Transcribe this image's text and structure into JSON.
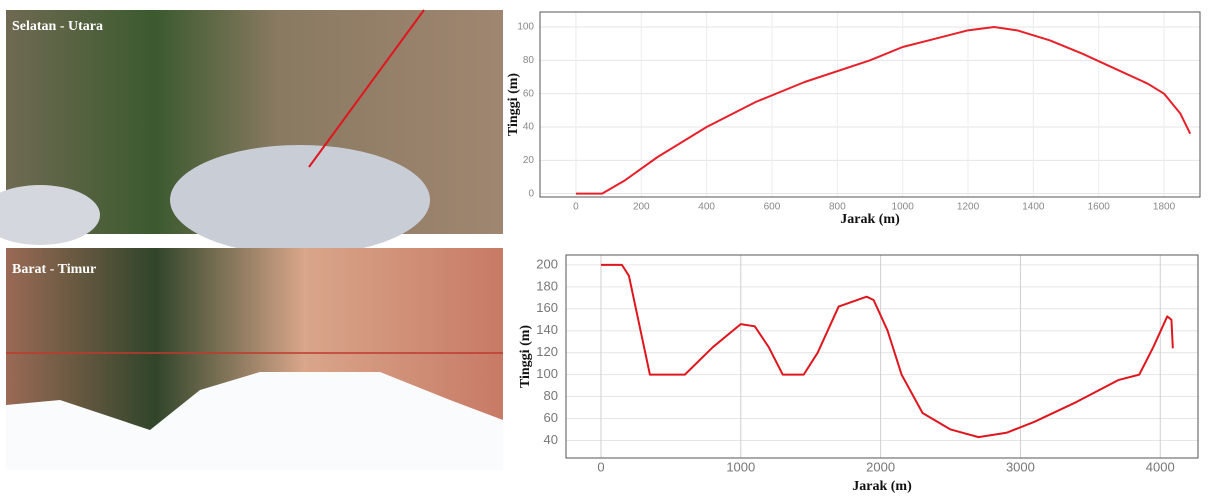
{
  "images": [
    {
      "label": "Selatan - Utara"
    },
    {
      "label": "Barat - Timur"
    }
  ],
  "chart_data": [
    {
      "type": "line",
      "xlabel": "Jarak (m)",
      "ylabel": "Tinggi (m)",
      "xlim": [
        -110,
        1910
      ],
      "ylim": [
        -2,
        109
      ],
      "xticks": [
        0,
        200,
        400,
        600,
        800,
        1000,
        1200,
        1400,
        1600,
        1800
      ],
      "yticks": [
        0,
        20,
        40,
        60,
        80,
        100
      ],
      "grid": true,
      "x": [
        0,
        80,
        150,
        250,
        400,
        550,
        700,
        900,
        1000,
        1100,
        1200,
        1280,
        1350,
        1450,
        1550,
        1650,
        1750,
        1800,
        1850,
        1880
      ],
      "series": [
        {
          "color": "#e8202a",
          "values": [
            0,
            0,
            8,
            22,
            40,
            55,
            67,
            80,
            88,
            93,
            98,
            100,
            98,
            92,
            84,
            75,
            66,
            60,
            48,
            36
          ]
        }
      ]
    },
    {
      "type": "line",
      "xlabel": "Jarak (m)",
      "ylabel": "Tinggi (m)",
      "xlim": [
        -250,
        4270
      ],
      "ylim": [
        24,
        209
      ],
      "xticks": [
        0,
        1000,
        2000,
        3000,
        4000
      ],
      "yticks": [
        40,
        60,
        80,
        100,
        120,
        140,
        160,
        180,
        200
      ],
      "grid": true,
      "x": [
        0,
        150,
        200,
        350,
        600,
        800,
        1000,
        1100,
        1200,
        1300,
        1450,
        1550,
        1700,
        1900,
        1950,
        2050,
        2150,
        2300,
        2500,
        2700,
        2900,
        3100,
        3400,
        3700,
        3850,
        3950,
        4050,
        4080,
        4090
      ],
      "series": [
        {
          "color": "#e0161e",
          "values": [
            200,
            200,
            190,
            100,
            100,
            125,
            146,
            144,
            125,
            100,
            100,
            120,
            162,
            171,
            168,
            140,
            100,
            65,
            50,
            43,
            47,
            57,
            75,
            95,
            100,
            125,
            153,
            150,
            124
          ]
        }
      ]
    }
  ]
}
